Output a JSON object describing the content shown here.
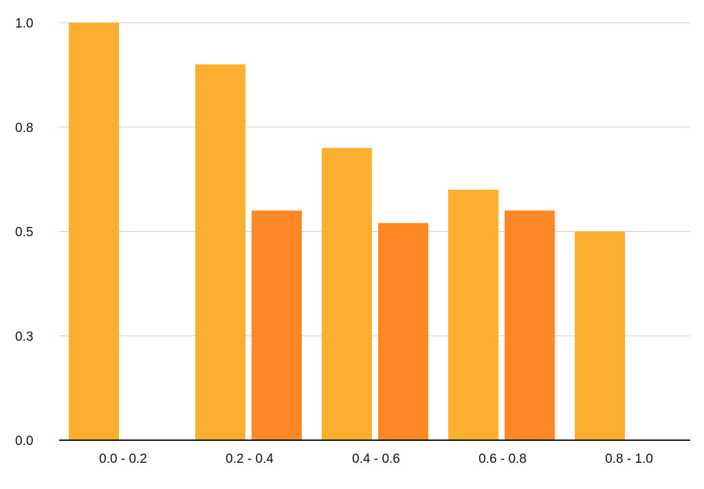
{
  "chart_data": {
    "type": "bar",
    "title": "",
    "xlabel": "",
    "ylabel": "",
    "categories": [
      "0.0 - 0.2",
      "0.2 - 0.4",
      "0.4 - 0.6",
      "0.6 - 0.8",
      "0.8 - 1.0"
    ],
    "series": [
      {
        "color": "#FCAE2F",
        "values": [
          1.0,
          0.9,
          0.7,
          0.6,
          0.5
        ]
      },
      {
        "color": "#FD8825",
        "values": [
          null,
          0.55,
          0.52,
          0.55,
          null
        ]
      }
    ],
    "ylim": [
      0,
      1.0
    ],
    "yticks": [
      0.0,
      0.25,
      0.5,
      0.75,
      1.0
    ],
    "ytick_labels": [
      "0.0",
      "0.3",
      "0.5",
      "0.8",
      "1.0"
    ],
    "grid": true,
    "legend": "none"
  },
  "colors": {
    "grid": "#c8c8c8",
    "axis": "#111111"
  }
}
